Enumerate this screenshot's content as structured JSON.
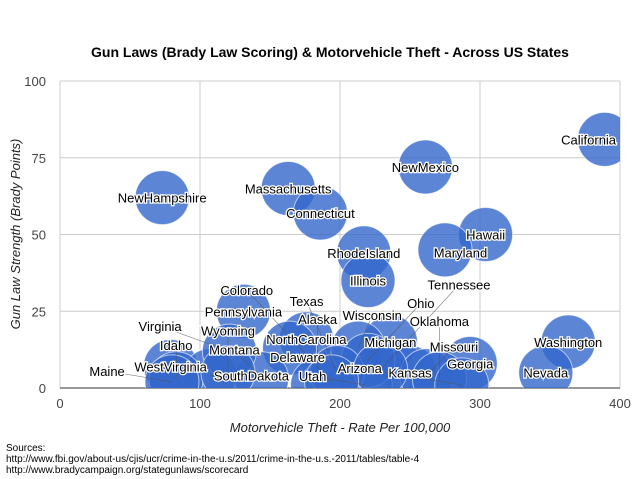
{
  "chart_data": {
    "type": "bubble",
    "title": "Gun Laws (Brady Law Scoring) & Motorvehicle Theft - Across US States",
    "xlabel": "Motorvehicle Theft - Rate Per 100,000",
    "ylabel": "Gun Law Strength (Brady Points)",
    "xlim": [
      0,
      400
    ],
    "ylim": [
      0,
      100
    ],
    "xticks": [
      0,
      100,
      200,
      300,
      400
    ],
    "yticks": [
      0,
      25,
      50,
      75,
      100
    ],
    "grid": true,
    "color": "#3366cc",
    "points": [
      {
        "label": "California",
        "x": 389,
        "y": 81
      },
      {
        "label": "NewMexico",
        "x": 261,
        "y": 72
      },
      {
        "label": "NewHampshire",
        "x": 73,
        "y": 62
      },
      {
        "label": "Massachusetts",
        "x": 163,
        "y": 65
      },
      {
        "label": "Connecticut",
        "x": 186,
        "y": 57
      },
      {
        "label": "Hawaii",
        "x": 304,
        "y": 50
      },
      {
        "label": "Maryland",
        "x": 275,
        "y": 45
      },
      {
        "label": "RhodeIsland",
        "x": 217,
        "y": 44
      },
      {
        "label": "Illinois",
        "x": 220,
        "y": 35
      },
      {
        "label": "Pennsylvania",
        "x": 131,
        "y": 25
      },
      {
        "label": "Washington",
        "x": 363,
        "y": 15
      },
      {
        "label": "NorthCarolina",
        "x": 176,
        "y": 16
      },
      {
        "label": "Michigan",
        "x": 236,
        "y": 15
      },
      {
        "label": "Delaware",
        "x": 164,
        "y": 13
      },
      {
        "label": "Georgia",
        "x": 293,
        "y": 8
      },
      {
        "label": "Nevada",
        "x": 347,
        "y": 5
      },
      {
        "label": "Kansas",
        "x": 250,
        "y": 5
      },
      {
        "label": "Missouri",
        "x": 262,
        "y": 4
      },
      {
        "label": "Oklahoma",
        "x": 271,
        "y": 3
      },
      {
        "label": "Arizona",
        "x": 287,
        "y": 1
      },
      {
        "label": "WestVirginia",
        "x": 79,
        "y": 7
      },
      {
        "label": "SouthDakota",
        "x": 107,
        "y": 4
      },
      {
        "label": "Idaho",
        "x": 83,
        "y": 3
      },
      {
        "label": "Montana",
        "x": 144,
        "y": 3
      },
      {
        "label": "Alaska",
        "x": 184,
        "y": 1
      },
      {
        "label": "Utah",
        "x": 218,
        "y": 1
      },
      {
        "label": "Virginia",
        "x": 121,
        "y": 12
      },
      {
        "label": "Wisconsin",
        "x": 213,
        "y": 13
      },
      {
        "label": "Ohio",
        "x": 220,
        "y": 9
      },
      {
        "label": "Texas",
        "x": 198,
        "y": 5
      },
      {
        "label": "Tennessee",
        "x": 229,
        "y": 6
      },
      {
        "label": "Colorado",
        "x": 194,
        "y": 2
      },
      {
        "label": "Wyoming",
        "x": 120,
        "y": 5
      },
      {
        "label": "Maine",
        "x": 80,
        "y": 2
      }
    ]
  },
  "sources": {
    "heading": "Sources:",
    "lines": [
      "http://www.fbi.gov/about-us/cjis/ucr/crime-in-the-u.s/2011/crime-in-the-u.s.-2011/tables/table-4",
      "http://www.bradycampaign.org/stategunlaws/scorecard"
    ]
  }
}
